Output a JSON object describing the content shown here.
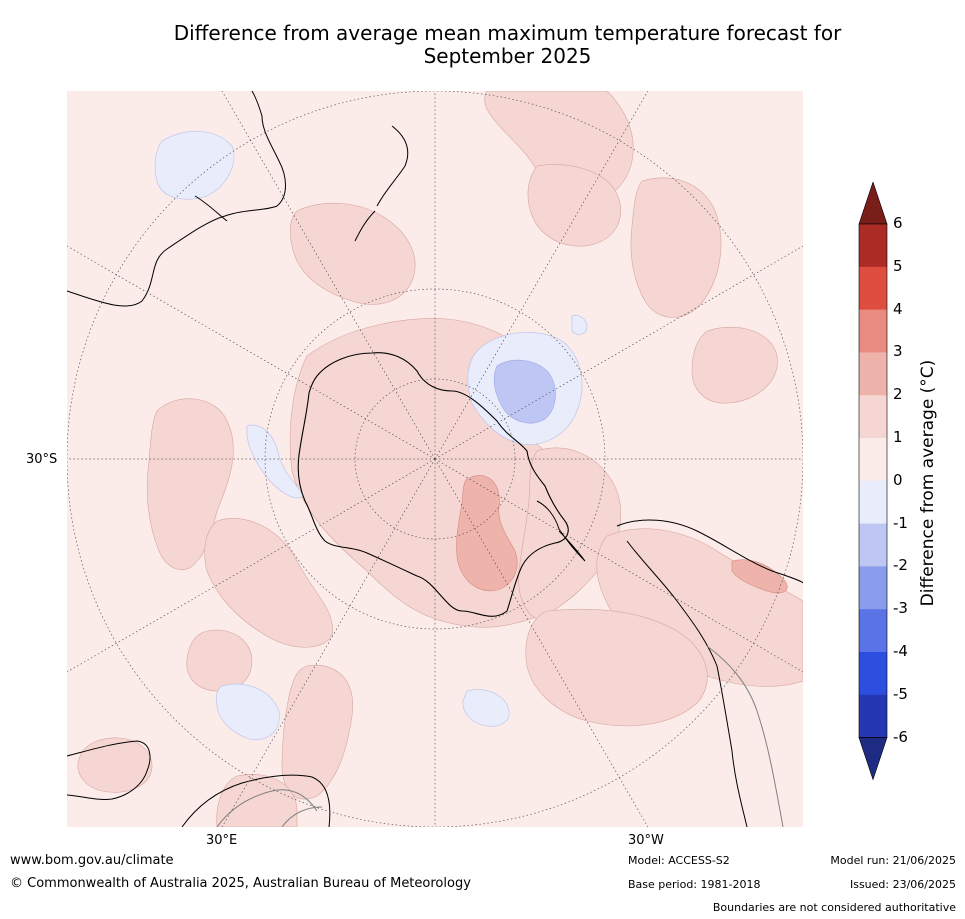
{
  "title_line1": "Difference from average mean maximum temperature forecast for",
  "title_line2": "September 2025",
  "map": {
    "projection": "south polar stereographic",
    "graticule_labels": {
      "lat_30s": "30°S",
      "lon_30e": "30°E",
      "lon_30w": "30°W"
    },
    "background_class": "0 to 1",
    "shown_classes": [
      "-1 to 0",
      "-2 to -1",
      "0 to 1",
      "1 to 2",
      "2 to 3"
    ]
  },
  "colorbar": {
    "title": "Difference from average (°C)",
    "tick_labels": [
      "6",
      "5",
      "4",
      "3",
      "2",
      "1",
      "0",
      "-1",
      "-2",
      "-3",
      "-4",
      "-5",
      "-6"
    ],
    "colors": [
      "#7a1e1a",
      "#aa2c24",
      "#dd4d40",
      "#e98b80",
      "#eeb3ab",
      "#f5d6d2",
      "#fbecea",
      "#e8ecfb",
      "#bec7f4",
      "#8a9cec",
      "#5a73e6",
      "#2d4fe0",
      "#2538b2",
      "#1e2b82"
    ],
    "extend": "both"
  },
  "footer": {
    "url": "www.bom.gov.au/climate",
    "copyright": "© Commonwealth of Australia 2025, Australian Bureau of Meteorology",
    "model": "Model: ACCESS-S2",
    "base_period": "Base period: 1981-2018",
    "model_run": "Model run: 21/06/2025",
    "issued": "Issued: 23/06/2025",
    "disclaimer": "Boundaries are not considered authoritative"
  }
}
